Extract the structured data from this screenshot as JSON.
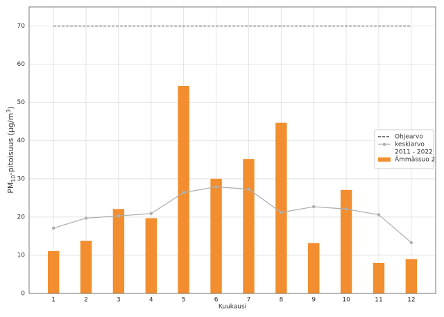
{
  "chart_data": {
    "type": "combo",
    "xlabel": "Kuukausi",
    "ylabel": {
      "prefix": "PM",
      "sub": "10",
      "mid": "-pitoisuus (µg/m",
      "sup": "3",
      "suffix": ")"
    },
    "x": [
      1,
      2,
      3,
      4,
      5,
      6,
      7,
      8,
      9,
      10,
      11,
      12
    ],
    "xlim": [
      0.25,
      12.75
    ],
    "xticks": [
      1,
      2,
      3,
      4,
      5,
      6,
      7,
      8,
      9,
      10,
      11,
      12
    ],
    "ylim": [
      0,
      75
    ],
    "yticks": [
      0,
      10,
      20,
      30,
      40,
      50,
      60,
      70
    ],
    "grid": true,
    "legend": "right",
    "series": [
      {
        "name": [
          "Ohjearvo"
        ],
        "type": "line",
        "style": "dashed",
        "color": "#222222",
        "values": [
          70,
          70,
          70,
          70,
          70,
          70,
          70,
          70,
          70,
          70,
          70,
          70
        ]
      },
      {
        "name": [
          "keskiarvo",
          "2011 - 2022"
        ],
        "type": "line",
        "style": "marker",
        "color": "#b0b0b0",
        "values": [
          17.1,
          19.7,
          20.3,
          20.9,
          26.4,
          27.9,
          27.3,
          21.2,
          22.7,
          22.1,
          20.6,
          13.3
        ]
      },
      {
        "name": [
          "Ämmässuo 2"
        ],
        "type": "bar",
        "color": "#f28e2f",
        "values": [
          11.1,
          13.8,
          22.1,
          19.7,
          54.3,
          30.0,
          35.2,
          44.7,
          13.2,
          27.1,
          8.0,
          9.0
        ]
      }
    ]
  }
}
